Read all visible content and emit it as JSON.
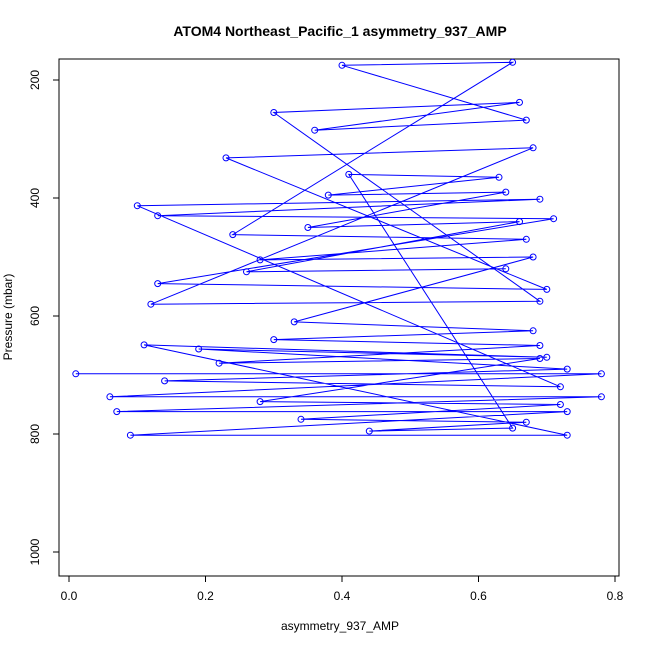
{
  "chart_data": {
    "type": "line",
    "title": "ATOM4 Northeast_Pacific_1 asymmetry_937_AMP",
    "xlabel": "asymmetry_937_AMP",
    "ylabel": "Pressure (mbar)",
    "xlim": [
      0.0,
      0.8
    ],
    "ylim": [
      1030,
      160
    ],
    "y_reversed": true,
    "grid": false,
    "x_ticks": [
      0.0,
      0.2,
      0.4,
      0.6,
      0.8
    ],
    "x_tick_labels": [
      "0.0",
      "0.2",
      "0.4",
      "0.6",
      "0.8"
    ],
    "y_ticks": [
      200,
      400,
      600,
      800,
      1000
    ],
    "y_tick_labels": [
      "200",
      "400",
      "600",
      "800",
      "1000"
    ],
    "series": [
      {
        "color": "#0000ff",
        "marker": "open-circle",
        "points": [
          [
            0.01,
            698
          ],
          [
            0.78,
            698
          ],
          [
            0.06,
            737
          ],
          [
            0.78,
            737
          ],
          [
            0.07,
            762
          ],
          [
            0.73,
            762
          ],
          [
            0.09,
            802
          ],
          [
            0.73,
            802
          ],
          [
            0.11,
            649
          ],
          [
            0.7,
            670
          ],
          [
            0.19,
            656
          ],
          [
            0.73,
            690
          ],
          [
            0.14,
            710
          ],
          [
            0.72,
            720
          ],
          [
            0.1,
            413
          ],
          [
            0.69,
            402
          ],
          [
            0.13,
            430
          ],
          [
            0.71,
            435
          ],
          [
            0.13,
            545
          ],
          [
            0.7,
            555
          ],
          [
            0.23,
            332
          ],
          [
            0.68,
            315
          ],
          [
            0.12,
            580
          ],
          [
            0.69,
            575
          ],
          [
            0.3,
            255
          ],
          [
            0.66,
            238
          ],
          [
            0.36,
            285
          ],
          [
            0.67,
            268
          ],
          [
            0.4,
            175
          ],
          [
            0.65,
            170
          ],
          [
            0.24,
            462
          ],
          [
            0.67,
            470
          ],
          [
            0.28,
            505
          ],
          [
            0.68,
            500
          ],
          [
            0.33,
            610
          ],
          [
            0.68,
            625
          ],
          [
            0.3,
            640
          ],
          [
            0.69,
            650
          ],
          [
            0.22,
            680
          ],
          [
            0.69,
            672
          ],
          [
            0.28,
            745
          ],
          [
            0.72,
            750
          ],
          [
            0.34,
            775
          ],
          [
            0.67,
            780
          ],
          [
            0.44,
            795
          ],
          [
            0.65,
            790
          ],
          [
            0.41,
            360
          ],
          [
            0.63,
            365
          ],
          [
            0.38,
            395
          ],
          [
            0.64,
            390
          ],
          [
            0.35,
            450
          ],
          [
            0.66,
            440
          ],
          [
            0.26,
            525
          ],
          [
            0.64,
            520
          ]
        ]
      }
    ]
  }
}
